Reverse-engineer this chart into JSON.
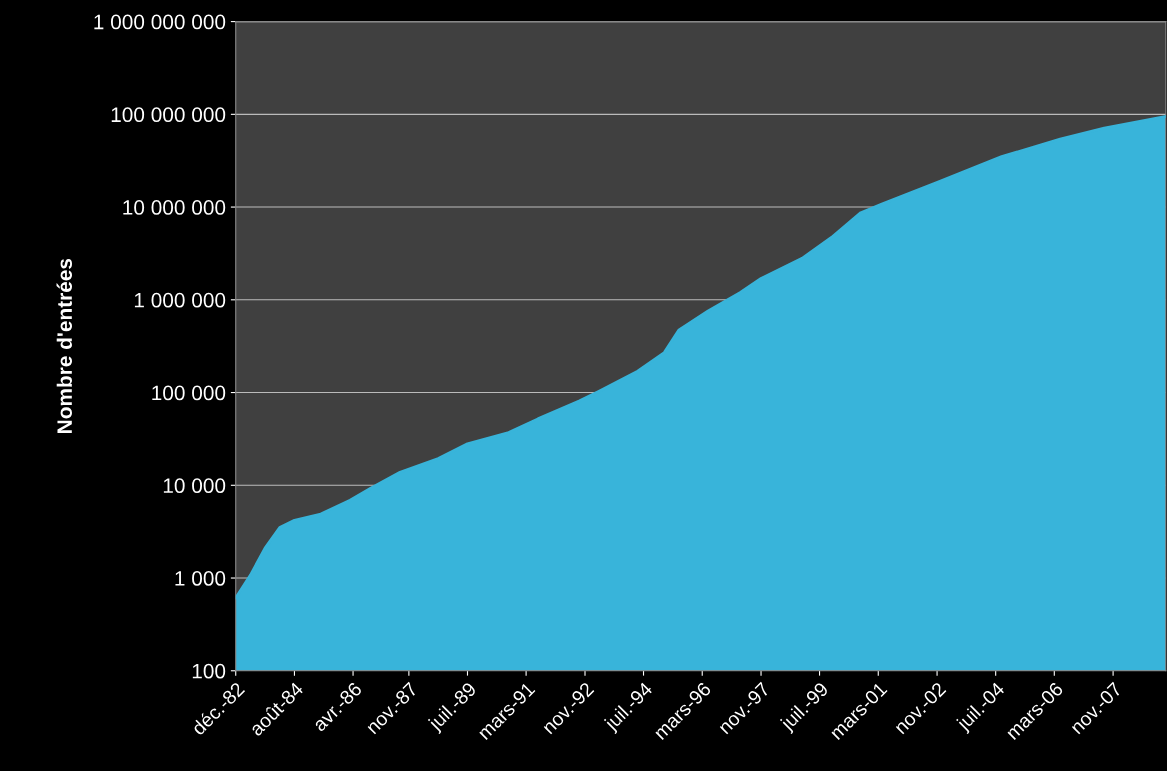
{
  "chart_data": {
    "type": "area",
    "ylabel": "Nombre d'entrées",
    "log": "y",
    "grid": "y",
    "legend": false,
    "x": [
      "1982-12",
      "1983-05",
      "1983-10",
      "1984-03",
      "1984-08",
      "1985-05",
      "1986-03",
      "1986-10",
      "1987-08",
      "1988-09",
      "1989-07",
      "1990-09",
      "1991-07",
      "1992-09",
      "1993-04",
      "1994-05",
      "1995-02",
      "1995-07",
      "1996-05",
      "1997-04",
      "1997-11",
      "1999-01",
      "1999-11",
      "2000-09",
      "2001-04",
      "2002-12",
      "2004-09",
      "2006-05",
      "2007-08",
      "2009-05"
    ],
    "series": [
      {
        "color": "#38b4da",
        "values": [
          610,
          1070,
          2100,
          3500,
          4200,
          4900,
          6900,
          9300,
          13800,
          19400,
          28000,
          37000,
          52000,
          81000,
          104000,
          170000,
          270000,
          470000,
          760000,
          1200000,
          1700000,
          2800000,
          4700000,
          8700000,
          10700000,
          19000000,
          35000000,
          54000000,
          71000000,
          95000000
        ]
      }
    ],
    "xlim": [
      "1982-12",
      "2009-05"
    ],
    "xticks": [
      {
        "value": "1982-12",
        "label": "déc.-82"
      },
      {
        "value": "1984-08",
        "label": "août-84"
      },
      {
        "value": "1986-04",
        "label": "avr.-86"
      },
      {
        "value": "1987-11",
        "label": "nov.-87"
      },
      {
        "value": "1989-07",
        "label": "juil.-89"
      },
      {
        "value": "1991-03",
        "label": "mars-91"
      },
      {
        "value": "1992-11",
        "label": "nov.-92"
      },
      {
        "value": "1994-07",
        "label": "juil.-94"
      },
      {
        "value": "1996-03",
        "label": "mars-96"
      },
      {
        "value": "1997-11",
        "label": "nov.-97"
      },
      {
        "value": "1999-07",
        "label": "juil.-99"
      },
      {
        "value": "2001-03",
        "label": "mars-01"
      },
      {
        "value": "2002-11",
        "label": "nov.-02"
      },
      {
        "value": "2004-07",
        "label": "juil.-04"
      },
      {
        "value": "2006-03",
        "label": "mars-06"
      },
      {
        "value": "2007-11",
        "label": "nov.-07"
      }
    ],
    "ylim": [
      100,
      1000000000
    ],
    "yticks": [
      100,
      {
        "value": 1000,
        "label": "1 000"
      },
      {
        "value": 10000,
        "label": "10 000"
      },
      {
        "value": 100000,
        "label": "100 000"
      },
      {
        "value": 1000000,
        "label": "1 000 000"
      },
      {
        "value": 10000000,
        "label": "10 000 000"
      },
      {
        "value": 100000000,
        "label": "100 000 000"
      },
      {
        "value": 1000000000,
        "label": "1 000 000 000"
      }
    ]
  }
}
